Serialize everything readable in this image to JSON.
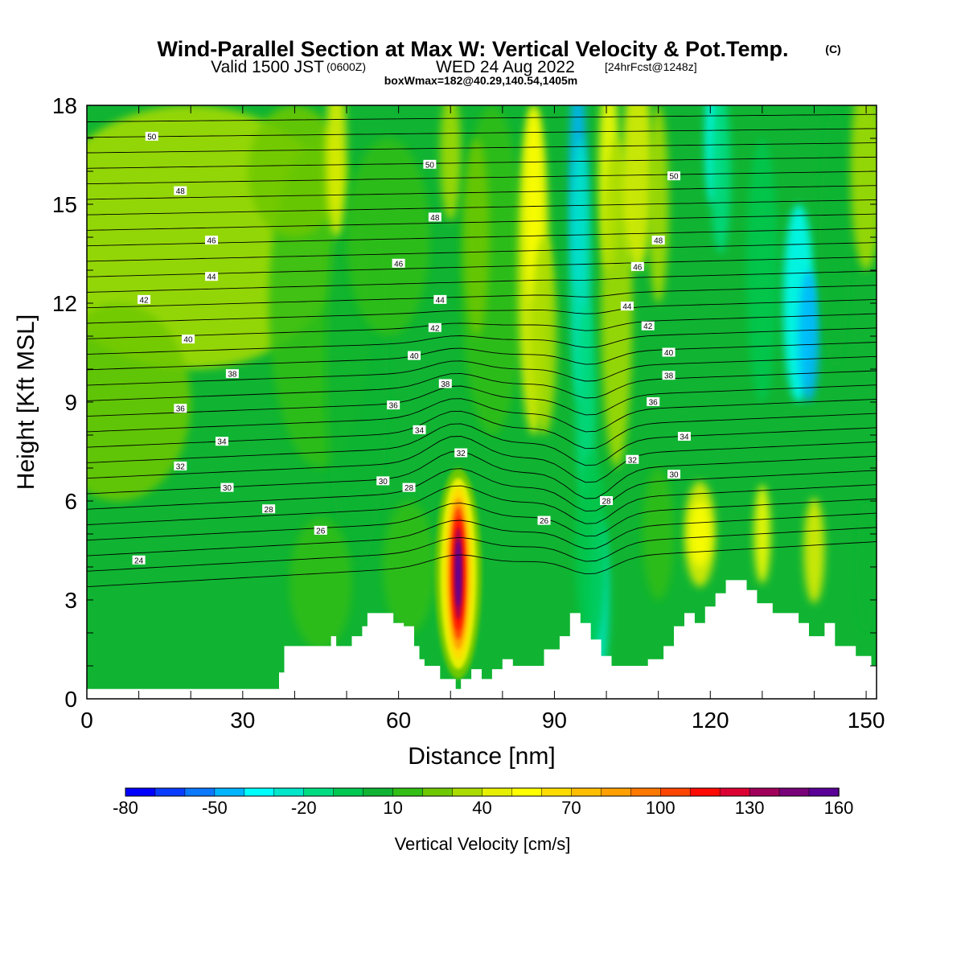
{
  "chart_data": {
    "type": "heatmap",
    "title": "Wind-Parallel Section at Max W: Vertical Velocity & Pot.Temp.",
    "title_mark": "(C)",
    "subtitle_a": "Valid 1500 JST",
    "subtitle_b": "(0600Z)",
    "subtitle_c": "WED 24 Aug 2022",
    "subtitle_d": "[24hrFcst@1248z]",
    "subtitle2": "boxWmax=182@40.29,140.54,1405m",
    "xlabel": "Distance [nm]",
    "ylabel": "Height [Kft MSL]",
    "xlim": [
      0,
      152
    ],
    "ylim": [
      0,
      18
    ],
    "xticks": [
      "0",
      "30",
      "60",
      "90",
      "120",
      "150"
    ],
    "yticks": [
      "0",
      "3",
      "6",
      "9",
      "12",
      "15",
      "18"
    ],
    "colorbar": {
      "title": "Vertical Velocity [cm/s]",
      "tick_labels": [
        "-80",
        "-50",
        "-20",
        "10",
        "40",
        "70",
        "100",
        "130",
        "160"
      ],
      "colors": [
        "#0000ff",
        "#0a3cff",
        "#0a78ff",
        "#00b4ff",
        "#00ffff",
        "#00e6c8",
        "#00dc82",
        "#00c850",
        "#10b432",
        "#32be14",
        "#6ec800",
        "#aadc00",
        "#e6f000",
        "#ffff00",
        "#ffdc00",
        "#ffbe00",
        "#ffa000",
        "#ff7800",
        "#ff4600",
        "#ff0a00",
        "#dc0032",
        "#a0005a",
        "#780078",
        "#5a0096"
      ]
    },
    "background_velocity_color": "#10b432",
    "theta_contour_labels": [
      {
        "x": 12.5,
        "y": 17.05,
        "v": "50"
      },
      {
        "x": 66,
        "y": 16.2,
        "v": "50"
      },
      {
        "x": 113,
        "y": 15.85,
        "v": "50"
      },
      {
        "x": 18,
        "y": 15.4,
        "v": "48"
      },
      {
        "x": 67,
        "y": 14.6,
        "v": "48"
      },
      {
        "x": 110,
        "y": 13.9,
        "v": "48"
      },
      {
        "x": 24,
        "y": 13.9,
        "v": "46"
      },
      {
        "x": 60,
        "y": 13.2,
        "v": "46"
      },
      {
        "x": 106,
        "y": 13.1,
        "v": "46"
      },
      {
        "x": 24,
        "y": 12.8,
        "v": "44"
      },
      {
        "x": 68,
        "y": 12.1,
        "v": "44"
      },
      {
        "x": 104,
        "y": 11.9,
        "v": "44"
      },
      {
        "x": 11,
        "y": 12.1,
        "v": "42"
      },
      {
        "x": 67,
        "y": 11.25,
        "v": "42"
      },
      {
        "x": 108,
        "y": 11.3,
        "v": "42"
      },
      {
        "x": 19.5,
        "y": 10.9,
        "v": "40"
      },
      {
        "x": 63,
        "y": 10.4,
        "v": "40"
      },
      {
        "x": 112,
        "y": 10.5,
        "v": "40"
      },
      {
        "x": 28,
        "y": 9.85,
        "v": "38"
      },
      {
        "x": 69,
        "y": 9.55,
        "v": "38"
      },
      {
        "x": 112,
        "y": 9.8,
        "v": "38"
      },
      {
        "x": 18,
        "y": 8.8,
        "v": "36"
      },
      {
        "x": 59,
        "y": 8.9,
        "v": "36"
      },
      {
        "x": 109,
        "y": 9.0,
        "v": "36"
      },
      {
        "x": 26,
        "y": 7.8,
        "v": "34"
      },
      {
        "x": 64,
        "y": 8.15,
        "v": "34"
      },
      {
        "x": 115,
        "y": 7.95,
        "v": "34"
      },
      {
        "x": 18,
        "y": 7.05,
        "v": "32"
      },
      {
        "x": 72,
        "y": 7.45,
        "v": "32"
      },
      {
        "x": 105,
        "y": 7.25,
        "v": "32"
      },
      {
        "x": 27,
        "y": 6.4,
        "v": "30"
      },
      {
        "x": 57,
        "y": 6.6,
        "v": "30"
      },
      {
        "x": 113,
        "y": 6.8,
        "v": "30"
      },
      {
        "x": 35,
        "y": 5.75,
        "v": "28"
      },
      {
        "x": 62,
        "y": 6.4,
        "v": "28"
      },
      {
        "x": 100,
        "y": 6.0,
        "v": "28"
      },
      {
        "x": 45,
        "y": 5.1,
        "v": "26"
      },
      {
        "x": 88,
        "y": 5.4,
        "v": "26"
      },
      {
        "x": 10,
        "y": 4.2,
        "v": "24"
      }
    ]
  }
}
